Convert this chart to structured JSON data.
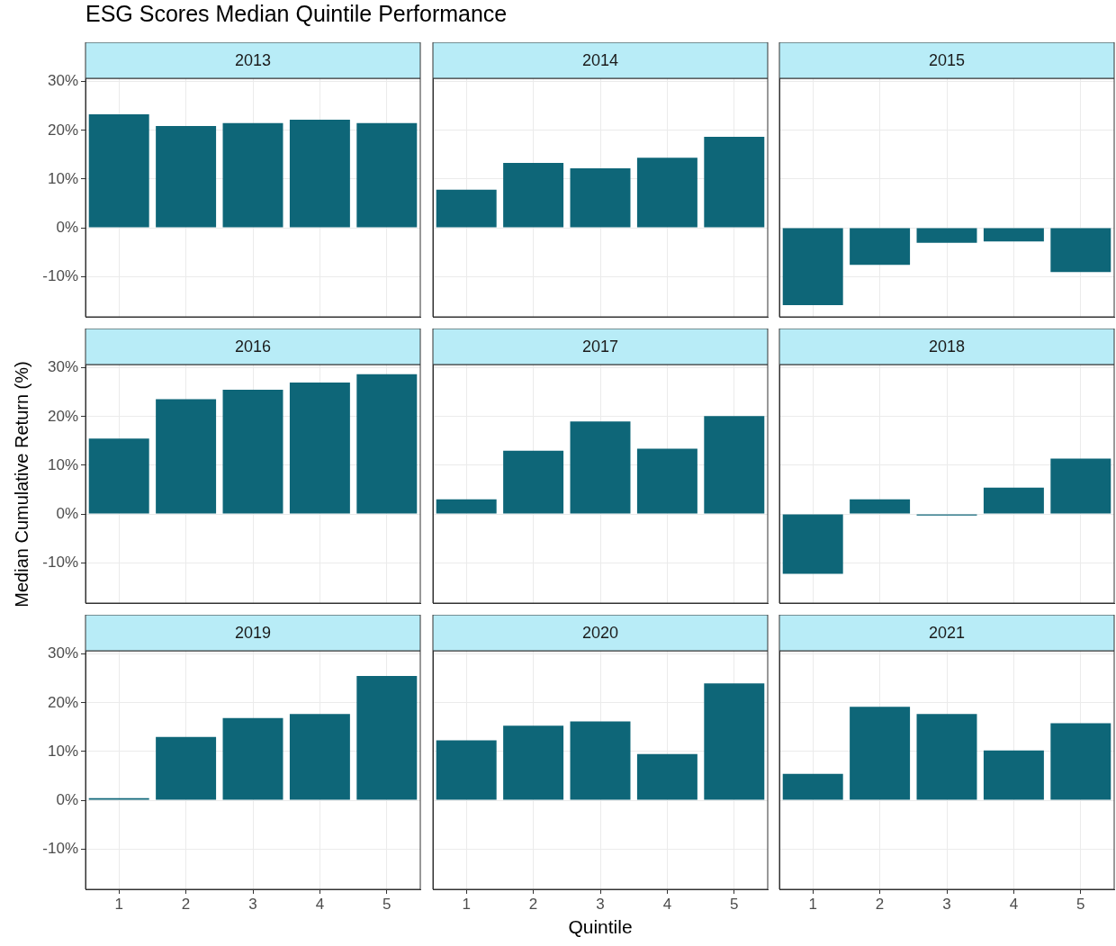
{
  "chart_data": [
    {
      "type": "bar",
      "title": "2013",
      "annotations": [
        "ESG Scores Median Quintile Performance"
      ],
      "categories": [
        "1",
        "2",
        "3",
        "4",
        "5"
      ],
      "values": [
        23.3,
        20.9,
        21.5,
        22.2,
        21.5
      ],
      "color": "#0e6678",
      "ylim": [
        -18.3,
        30.7
      ],
      "yticks": [
        {
          "value": -10,
          "label": "-10%"
        },
        {
          "value": 0,
          "label": "0%"
        },
        {
          "value": 10,
          "label": "10%"
        },
        {
          "value": 20,
          "label": "20%"
        },
        {
          "value": 30,
          "label": "30%"
        }
      ],
      "grid": true,
      "tick_labels": "y"
    },
    {
      "type": "bar",
      "title": "2014",
      "categories": [
        "1",
        "2",
        "3",
        "4",
        "5"
      ],
      "values": [
        7.8,
        13.3,
        12.2,
        14.4,
        18.7
      ],
      "color": "#0e6678",
      "ylim": [
        -18.3,
        30.7
      ],
      "yticks": [
        {
          "value": -10,
          "label": null
        },
        {
          "value": 0,
          "label": null
        },
        {
          "value": 10,
          "label": null
        },
        {
          "value": 20,
          "label": null
        },
        {
          "value": 30,
          "label": null
        }
      ],
      "grid": true,
      "tick_labels": false
    },
    {
      "type": "bar",
      "title": "2015",
      "categories": [
        "1",
        "2",
        "3",
        "4",
        "5"
      ],
      "values": [
        -15.9,
        -7.6,
        -3.1,
        -2.8,
        -9.1
      ],
      "color": "#0e6678",
      "ylim": [
        -18.3,
        30.7
      ],
      "yticks": [
        {
          "value": -10,
          "label": null
        },
        {
          "value": 0,
          "label": null
        },
        {
          "value": 10,
          "label": null
        },
        {
          "value": 20,
          "label": null
        },
        {
          "value": 30,
          "label": null
        }
      ],
      "grid": true,
      "tick_labels": false
    },
    {
      "type": "bar",
      "title": "2016",
      "ylabel": "Median Cumulative Return (%)",
      "categories": [
        "1",
        "2",
        "3",
        "4",
        "5"
      ],
      "values": [
        15.5,
        23.6,
        25.5,
        27.0,
        28.7
      ],
      "color": "#0e6678",
      "ylim": [
        -18.3,
        30.7
      ],
      "yticks": [
        {
          "value": -10,
          "label": "-10%"
        },
        {
          "value": 0,
          "label": "0%"
        },
        {
          "value": 10,
          "label": "10%"
        },
        {
          "value": 20,
          "label": "20%"
        },
        {
          "value": 30,
          "label": "30%"
        }
      ],
      "grid": true,
      "tick_labels": "y"
    },
    {
      "type": "bar",
      "title": "2017",
      "categories": [
        "1",
        "2",
        "3",
        "4",
        "5"
      ],
      "values": [
        3.0,
        13.0,
        19.0,
        13.4,
        20.1
      ],
      "color": "#0e6678",
      "ylim": [
        -18.3,
        30.7
      ],
      "yticks": [
        {
          "value": -10,
          "label": null
        },
        {
          "value": 0,
          "label": null
        },
        {
          "value": 10,
          "label": null
        },
        {
          "value": 20,
          "label": null
        },
        {
          "value": 30,
          "label": null
        }
      ],
      "grid": true,
      "tick_labels": false
    },
    {
      "type": "bar",
      "title": "2018",
      "categories": [
        "1",
        "2",
        "3",
        "4",
        "5"
      ],
      "values": [
        -12.3,
        3.0,
        -0.3,
        5.4,
        11.4
      ],
      "color": "#0e6678",
      "ylim": [
        -18.3,
        30.7
      ],
      "yticks": [
        {
          "value": -10,
          "label": null
        },
        {
          "value": 0,
          "label": null
        },
        {
          "value": 10,
          "label": null
        },
        {
          "value": 20,
          "label": null
        },
        {
          "value": 30,
          "label": null
        }
      ],
      "grid": true,
      "tick_labels": false
    },
    {
      "type": "bar",
      "title": "2019",
      "categories": [
        "1",
        "2",
        "3",
        "4",
        "5"
      ],
      "values": [
        0.4,
        13.0,
        16.9,
        17.7,
        25.5
      ],
      "color": "#0e6678",
      "ylim": [
        -18.3,
        30.7
      ],
      "yticks": [
        {
          "value": -10,
          "label": "-10%"
        },
        {
          "value": 0,
          "label": "0%"
        },
        {
          "value": 10,
          "label": "10%"
        },
        {
          "value": 20,
          "label": "20%"
        },
        {
          "value": 30,
          "label": "30%"
        }
      ],
      "grid": true
    },
    {
      "type": "bar",
      "title": "2020",
      "xlabel": "Quintile",
      "categories": [
        "1",
        "2",
        "3",
        "4",
        "5"
      ],
      "values": [
        12.3,
        15.3,
        16.2,
        9.5,
        24.0
      ],
      "color": "#0e6678",
      "ylim": [
        -18.3,
        30.7
      ],
      "yticks": [
        {
          "value": -10,
          "label": null
        },
        {
          "value": 0,
          "label": null
        },
        {
          "value": 10,
          "label": null
        },
        {
          "value": 20,
          "label": null
        },
        {
          "value": 30,
          "label": null
        }
      ],
      "grid": true,
      "tick_labels": "x"
    },
    {
      "type": "bar",
      "title": "2021",
      "categories": [
        "1",
        "2",
        "3",
        "4",
        "5"
      ],
      "values": [
        5.4,
        19.2,
        17.7,
        10.2,
        15.8
      ],
      "color": "#0e6678",
      "ylim": [
        -18.3,
        30.7
      ],
      "yticks": [
        {
          "value": -10,
          "label": null
        },
        {
          "value": 0,
          "label": null
        },
        {
          "value": 10,
          "label": null
        },
        {
          "value": 20,
          "label": null
        },
        {
          "value": 30,
          "label": null
        }
      ],
      "grid": true,
      "tick_labels": "x"
    }
  ]
}
